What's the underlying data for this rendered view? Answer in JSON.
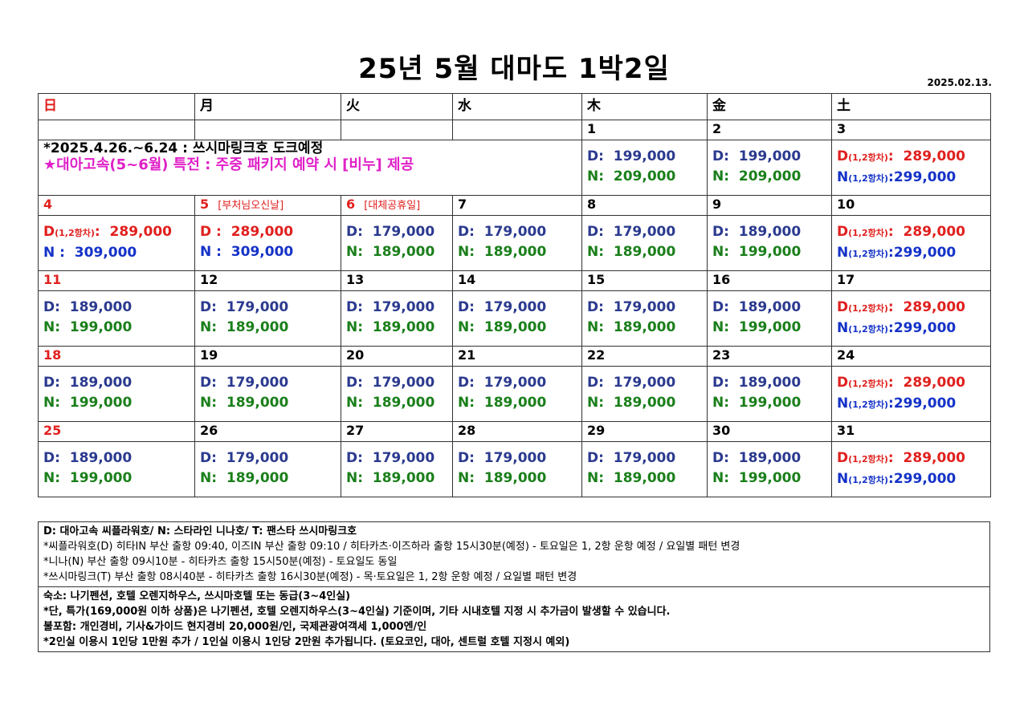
{
  "title": "25년 5월 대마도 1박2일",
  "date": "2025.02.13.",
  "weekdays": [
    "日",
    "月",
    "火",
    "水",
    "木",
    "金",
    "土"
  ],
  "first_row_dates": [
    "",
    "",
    "",
    "",
    "1",
    "2",
    "3"
  ],
  "notice": {
    "line1": "*2025.4.26.~6.24 : 쓰시마링크호 도크예정",
    "promo": "★대아고속(5~6월) 특전 : 주중 패키지 예약 시 [비누] 제공"
  },
  "price_labels": {
    "D": "D:",
    "N": "N:",
    "Dsat": "D",
    "Nsat": "N",
    "round": "(1,2항차)"
  },
  "week1_prices": [
    {
      "d": "199,000",
      "n": "209,000"
    },
    {
      "d": "199,000",
      "n": "209,000"
    },
    {
      "d": "289,000",
      "n": "299,000"
    }
  ],
  "weeks": [
    {
      "dates": [
        "4",
        "5",
        "6",
        "7",
        "8",
        "9",
        "10"
      ],
      "holidays": [
        "",
        "[부처님오신날]",
        "[대체공휴일]",
        "",
        "",
        "",
        ""
      ],
      "special": [
        {
          "d": "D(1,2항차): 289,000",
          "n": "N : 309,000"
        },
        {
          "d": "D : 289,000",
          "n": "N : 309,000"
        }
      ],
      "prices": [
        null,
        null,
        {
          "d": "179,000",
          "n": "189,000"
        },
        {
          "d": "179,000",
          "n": "189,000"
        },
        {
          "d": "179,000",
          "n": "189,000"
        },
        {
          "d": "189,000",
          "n": "199,000"
        },
        {
          "d": "289,000",
          "n": "299,000"
        }
      ]
    },
    {
      "dates": [
        "11",
        "12",
        "13",
        "14",
        "15",
        "16",
        "17"
      ],
      "prices": [
        {
          "d": "189,000",
          "n": "199,000"
        },
        {
          "d": "179,000",
          "n": "189,000"
        },
        {
          "d": "179,000",
          "n": "189,000"
        },
        {
          "d": "179,000",
          "n": "189,000"
        },
        {
          "d": "179,000",
          "n": "189,000"
        },
        {
          "d": "189,000",
          "n": "199,000"
        },
        {
          "d": "289,000",
          "n": "299,000"
        }
      ]
    },
    {
      "dates": [
        "18",
        "19",
        "20",
        "21",
        "22",
        "23",
        "24"
      ],
      "prices": [
        {
          "d": "189,000",
          "n": "199,000"
        },
        {
          "d": "179,000",
          "n": "189,000"
        },
        {
          "d": "179,000",
          "n": "189,000"
        },
        {
          "d": "179,000",
          "n": "189,000"
        },
        {
          "d": "179,000",
          "n": "189,000"
        },
        {
          "d": "189,000",
          "n": "199,000"
        },
        {
          "d": "289,000",
          "n": "299,000"
        }
      ]
    },
    {
      "dates": [
        "25",
        "26",
        "27",
        "28",
        "29",
        "30",
        "31"
      ],
      "prices": [
        {
          "d": "189,000",
          "n": "199,000"
        },
        {
          "d": "179,000",
          "n": "189,000"
        },
        {
          "d": "179,000",
          "n": "189,000"
        },
        {
          "d": "179,000",
          "n": "189,000"
        },
        {
          "d": "179,000",
          "n": "189,000"
        },
        {
          "d": "189,000",
          "n": "199,000"
        },
        {
          "d": "289,000",
          "n": "299,000"
        }
      ]
    }
  ],
  "notes": {
    "ferry_legend": "D: 대아고속 씨플라워호/ N: 스타라인 니나호/ T: 팬스타 쓰시마링크호",
    "ferry_lines": [
      "*씨플라워호(D) 히타IN 부산 출항 09:40, 이즈IN 부산 출항 09:10 / 히타카츠·이즈하라 출항 15시30분(예정) - 토요일은 1, 2항 운항 예정 / 요일별 패턴 변경",
      "*니나(N) 부산 출항 09시10분 - 히타카츠 출항 15시50분(예정) - 토요일도 동일",
      "*쓰시마링크(T) 부산 출항 08시40분 - 히타카츠 출항 16시30분(예정) - 목·토요일은 1, 2항 운항 예정 / 요일별 패턴 변경"
    ],
    "lodging": "숙소: 나기펜션, 호텔 오렌지하우스, 쓰시마호텔 또는 동급(3~4인실)",
    "lodging_note": "*단, 특가(169,000원 이하 상품)은 나기펜션, 호텔 오렌지하우스(3~4인실) 기준이며, 기타 시내호텔 지정 시 추가금이 발생할 수 있습니다.",
    "excluded": "불포함: 개인경비, 기사&가이드 현지경비 20,000원/인, 국제관광여객세 1,000엔/인",
    "room_note": "*2인실 이용시 1인당 1만원 추가 / 1인실 이용시 1인당 2만원 추가됩니다. (토요코인, 대아, 센트럴 호텔 지정시  예외)"
  },
  "colors": {
    "sunday": "#e0201e",
    "d_price": "#2b3a8f",
    "n_price": "#1a7f1a",
    "sat_n": "#1432c8",
    "promo": "#e020c8"
  }
}
